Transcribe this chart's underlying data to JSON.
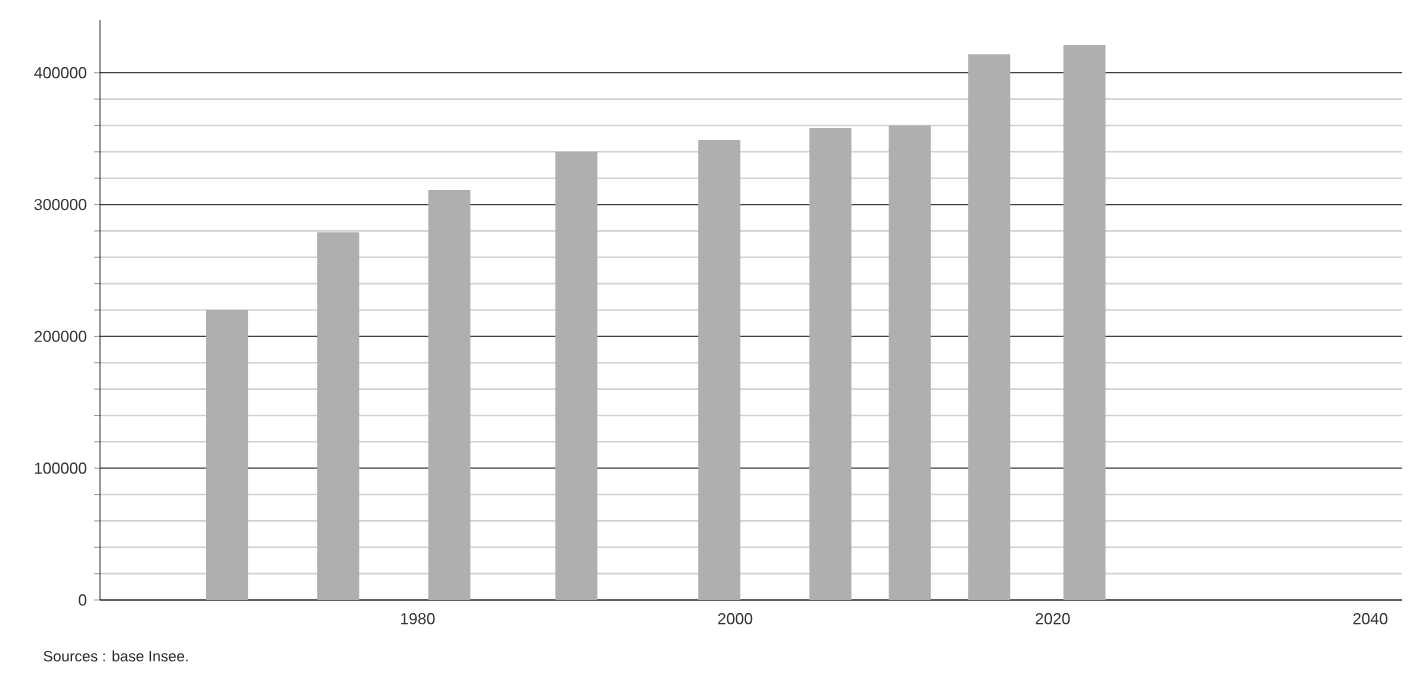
{
  "chart_data": {
    "type": "bar",
    "x": [
      1968,
      1975,
      1982,
      1990,
      1999,
      2006,
      2011,
      2016,
      2022
    ],
    "values": [
      220000,
      279000,
      311000,
      340000,
      349000,
      358000,
      360000,
      414000,
      421000
    ],
    "color": "#afafaf",
    "xlim": [
      1960,
      2042
    ],
    "xticks": [
      1980,
      2000,
      2020,
      2040
    ],
    "ylim": [
      0,
      440000
    ],
    "yticks": [
      0,
      100000,
      200000,
      300000,
      400000
    ],
    "grid": "y",
    "annotations": [
      "Sources : base Insee."
    ]
  }
}
